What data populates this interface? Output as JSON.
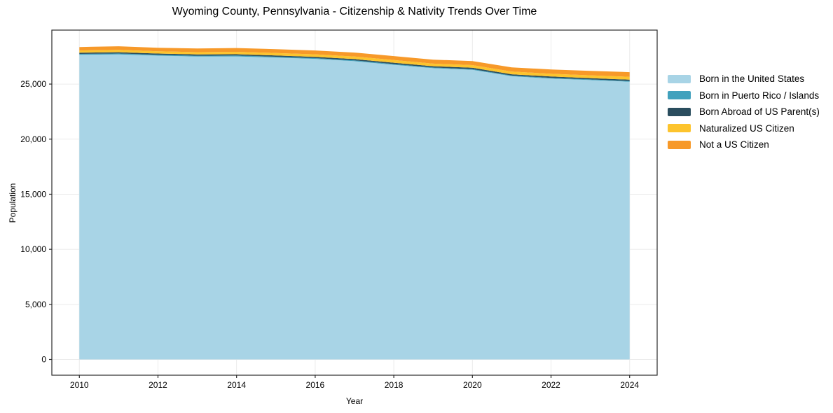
{
  "title": "Wyoming County, Pennsylvania - Citizenship & Nativity Trends Over Time",
  "chart_data": {
    "type": "area",
    "stacked": true,
    "title": "Wyoming County, Pennsylvania - Citizenship & Nativity Trends Over Time",
    "xlabel": "Year",
    "ylabel": "Population",
    "x": [
      2010,
      2011,
      2012,
      2013,
      2014,
      2015,
      2016,
      2017,
      2018,
      2019,
      2020,
      2021,
      2022,
      2023,
      2024
    ],
    "series": [
      {
        "name": "Born in the United States",
        "color": "#a8d4e6",
        "values": [
          27660,
          27690,
          27580,
          27500,
          27510,
          27410,
          27290,
          27080,
          26750,
          26440,
          26290,
          25710,
          25495,
          25360,
          25210
        ]
      },
      {
        "name": "Born in Puerto Rico / Islands",
        "color": "#41a1bd",
        "values": [
          80,
          85,
          80,
          75,
          80,
          75,
          70,
          75,
          70,
          65,
          70,
          65,
          70,
          65,
          70
        ]
      },
      {
        "name": "Born Abroad of US Parent(s)",
        "color": "#2a4d5e",
        "values": [
          110,
          115,
          110,
          115,
          120,
          115,
          110,
          115,
          120,
          115,
          120,
          115,
          120,
          115,
          120
        ]
      },
      {
        "name": "Naturalized US Citizen",
        "color": "#fdc42d",
        "values": [
          200,
          210,
          205,
          210,
          220,
          225,
          230,
          235,
          240,
          235,
          240,
          245,
          250,
          255,
          260
        ]
      },
      {
        "name": "Not a US Citizen",
        "color": "#f79929",
        "values": [
          310,
          330,
          325,
          330,
          340,
          345,
          350,
          355,
          360,
          365,
          370,
          385,
          395,
          405,
          420
        ]
      }
    ],
    "totals": [
      28360,
      28430,
      28300,
      28230,
      28270,
      28170,
      28050,
      27860,
      27540,
      27220,
      27090,
      26520,
      26330,
      26200,
      26080
    ],
    "xlim": [
      2009.3,
      2024.7
    ],
    "ylim": [
      -1430,
      29900
    ],
    "xticks": [
      2010,
      2012,
      2014,
      2016,
      2018,
      2020,
      2022,
      2024
    ],
    "xtick_labels": [
      "2010",
      "2012",
      "2014",
      "2016",
      "2018",
      "2020",
      "2022",
      "2024"
    ],
    "yticks": [
      0,
      5000,
      10000,
      15000,
      20000,
      25000
    ],
    "ytick_labels": [
      "0",
      "5,000",
      "10,000",
      "15,000",
      "20,000",
      "25,000"
    ],
    "grid": true,
    "legend_position": "right-outside"
  },
  "colors": {
    "grid": "#ebebeb",
    "spine": "#2b2b2b",
    "tick_text": "#000000",
    "background": "#ffffff"
  }
}
